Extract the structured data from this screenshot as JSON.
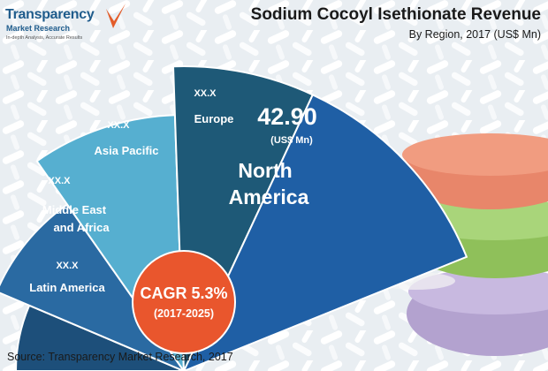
{
  "logo": {
    "name": "Transparency",
    "sub": "Market Research",
    "tagline": "In-depth Analysis, Accurate Results"
  },
  "header": {
    "title": "Sodium Cocoyl Isethionate Revenue",
    "subtitle": "By Region, 2017 (US$ Mn)"
  },
  "source": "Source: Transparency Market Research, 2017",
  "cagr": {
    "label": "CAGR 5.3%",
    "period": "(2017-2025)"
  },
  "colors": {
    "latin_america": "#1d4f7a",
    "mea": "#2a6aa2",
    "asia_pacific": "#56afd0",
    "europe": "#1e5977",
    "north_america": "#1f5fa5",
    "cagr": "#e9562d",
    "logo_check": "#e35c29"
  },
  "chart_data": {
    "type": "pie",
    "title": "Sodium Cocoyl Isethionate Revenue",
    "subtitle": "By Region, 2017 (US$ Mn)",
    "segments": [
      {
        "name": "Latin America",
        "value_label": "XX.X"
      },
      {
        "name": "Middle East and Africa",
        "name_lines": [
          "Middle East",
          "and Africa"
        ],
        "value_label": "XX.X"
      },
      {
        "name": "Asia Pacific",
        "value_label": "XX.X"
      },
      {
        "name": "Europe",
        "value_label": "XX.X"
      },
      {
        "name": "North America",
        "name_lines": [
          "North",
          "America"
        ],
        "value": 42.9,
        "value_label": "42.90",
        "unit": "(US$ Mn)"
      }
    ]
  }
}
